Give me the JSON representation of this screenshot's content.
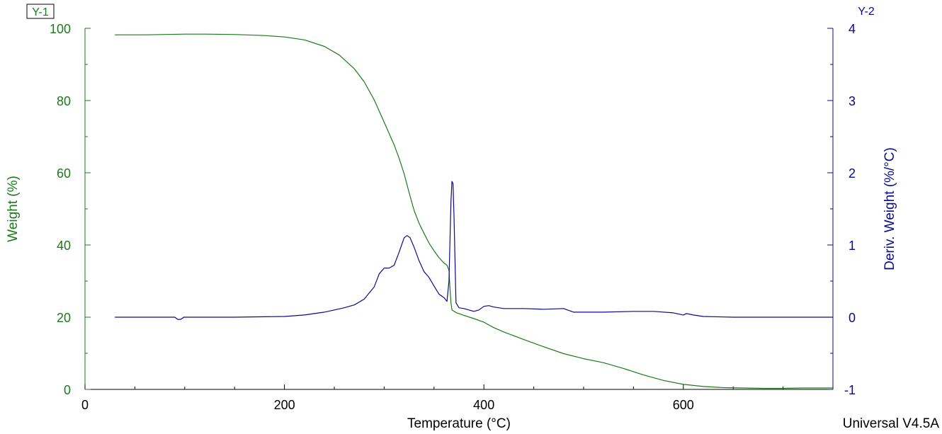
{
  "chart_data": {
    "type": "line",
    "xlabel": "Temperature (°C)",
    "ylabel_left": "Weight (%)",
    "ylabel_right": "Deriv. Weight (%/°C)",
    "left_axis_tag": "Y-1",
    "right_axis_tag": "Y-2",
    "footer": "Universal V4.5A",
    "xlim": [
      0,
      750
    ],
    "ylim_left": [
      0,
      100
    ],
    "ylim_right": [
      -1,
      4
    ],
    "x_ticks": [
      0,
      200,
      400,
      600
    ],
    "y_left_ticks": [
      0,
      20,
      40,
      60,
      80,
      100
    ],
    "y_right_ticks": [
      -1,
      0,
      1,
      2,
      3,
      4
    ],
    "grid": false,
    "colors": {
      "weight": "#1a7a1a",
      "deriv": "#0a0a8c",
      "axis_left": "#1a7a1a",
      "axis_right": "#0a0a8c",
      "frame": "#000000"
    },
    "series": [
      {
        "axis": "left",
        "values": [
          [
            30,
            98.2
          ],
          [
            60,
            98.2
          ],
          [
            80,
            98.3
          ],
          [
            100,
            98.4
          ],
          [
            120,
            98.4
          ],
          [
            150,
            98.3
          ],
          [
            180,
            98.0
          ],
          [
            200,
            97.6
          ],
          [
            220,
            96.8
          ],
          [
            240,
            95.0
          ],
          [
            255,
            92.6
          ],
          [
            270,
            88.8
          ],
          [
            280,
            85.2
          ],
          [
            290,
            80.2
          ],
          [
            300,
            74.0
          ],
          [
            310,
            67.7
          ],
          [
            315,
            64.0
          ],
          [
            320,
            59.7
          ],
          [
            325,
            54.5
          ],
          [
            330,
            49.6
          ],
          [
            335,
            46.0
          ],
          [
            340,
            43.2
          ],
          [
            345,
            40.5
          ],
          [
            350,
            38.4
          ],
          [
            355,
            36.5
          ],
          [
            360,
            35.0
          ],
          [
            363,
            34.4
          ],
          [
            365,
            33.0
          ],
          [
            366,
            28.0
          ],
          [
            367,
            24.0
          ],
          [
            368,
            22.0
          ],
          [
            372,
            21.3
          ],
          [
            380,
            20.5
          ],
          [
            390,
            19.6
          ],
          [
            400,
            18.6
          ],
          [
            410,
            17.1
          ],
          [
            420,
            15.9
          ],
          [
            440,
            13.8
          ],
          [
            460,
            11.8
          ],
          [
            480,
            9.9
          ],
          [
            500,
            8.5
          ],
          [
            520,
            7.4
          ],
          [
            540,
            5.8
          ],
          [
            560,
            4.0
          ],
          [
            580,
            2.5
          ],
          [
            600,
            1.4
          ],
          [
            620,
            0.8
          ],
          [
            640,
            0.5
          ],
          [
            660,
            0.4
          ],
          [
            680,
            0.3
          ],
          [
            700,
            0.3
          ],
          [
            720,
            0.4
          ],
          [
            750,
            0.4
          ]
        ]
      },
      {
        "axis": "right",
        "values": [
          [
            30,
            0.0
          ],
          [
            90,
            0.0
          ],
          [
            93,
            -0.03
          ],
          [
            96,
            -0.03
          ],
          [
            99,
            0.0
          ],
          [
            150,
            0.0
          ],
          [
            200,
            0.01
          ],
          [
            220,
            0.03
          ],
          [
            240,
            0.07
          ],
          [
            260,
            0.13
          ],
          [
            270,
            0.17
          ],
          [
            280,
            0.25
          ],
          [
            290,
            0.42
          ],
          [
            295,
            0.6
          ],
          [
            300,
            0.68
          ],
          [
            305,
            0.68
          ],
          [
            310,
            0.72
          ],
          [
            315,
            0.9
          ],
          [
            320,
            1.1
          ],
          [
            323,
            1.13
          ],
          [
            326,
            1.1
          ],
          [
            330,
            0.97
          ],
          [
            335,
            0.78
          ],
          [
            340,
            0.63
          ],
          [
            345,
            0.55
          ],
          [
            350,
            0.43
          ],
          [
            355,
            0.32
          ],
          [
            360,
            0.27
          ],
          [
            363,
            0.22
          ],
          [
            365,
            0.5
          ],
          [
            367,
            1.6
          ],
          [
            368,
            1.88
          ],
          [
            369,
            1.85
          ],
          [
            370,
            1.4
          ],
          [
            371,
            0.8
          ],
          [
            372,
            0.2
          ],
          [
            375,
            0.13
          ],
          [
            380,
            0.12
          ],
          [
            390,
            0.08
          ],
          [
            395,
            0.1
          ],
          [
            400,
            0.15
          ],
          [
            405,
            0.16
          ],
          [
            410,
            0.14
          ],
          [
            420,
            0.12
          ],
          [
            440,
            0.12
          ],
          [
            460,
            0.11
          ],
          [
            480,
            0.12
          ],
          [
            490,
            0.07
          ],
          [
            500,
            0.07
          ],
          [
            520,
            0.07
          ],
          [
            550,
            0.08
          ],
          [
            570,
            0.08
          ],
          [
            590,
            0.06
          ],
          [
            600,
            0.03
          ],
          [
            603,
            0.05
          ],
          [
            610,
            0.03
          ],
          [
            620,
            0.01
          ],
          [
            650,
            0.0
          ],
          [
            700,
            0.0
          ],
          [
            750,
            0.0
          ]
        ]
      }
    ]
  }
}
